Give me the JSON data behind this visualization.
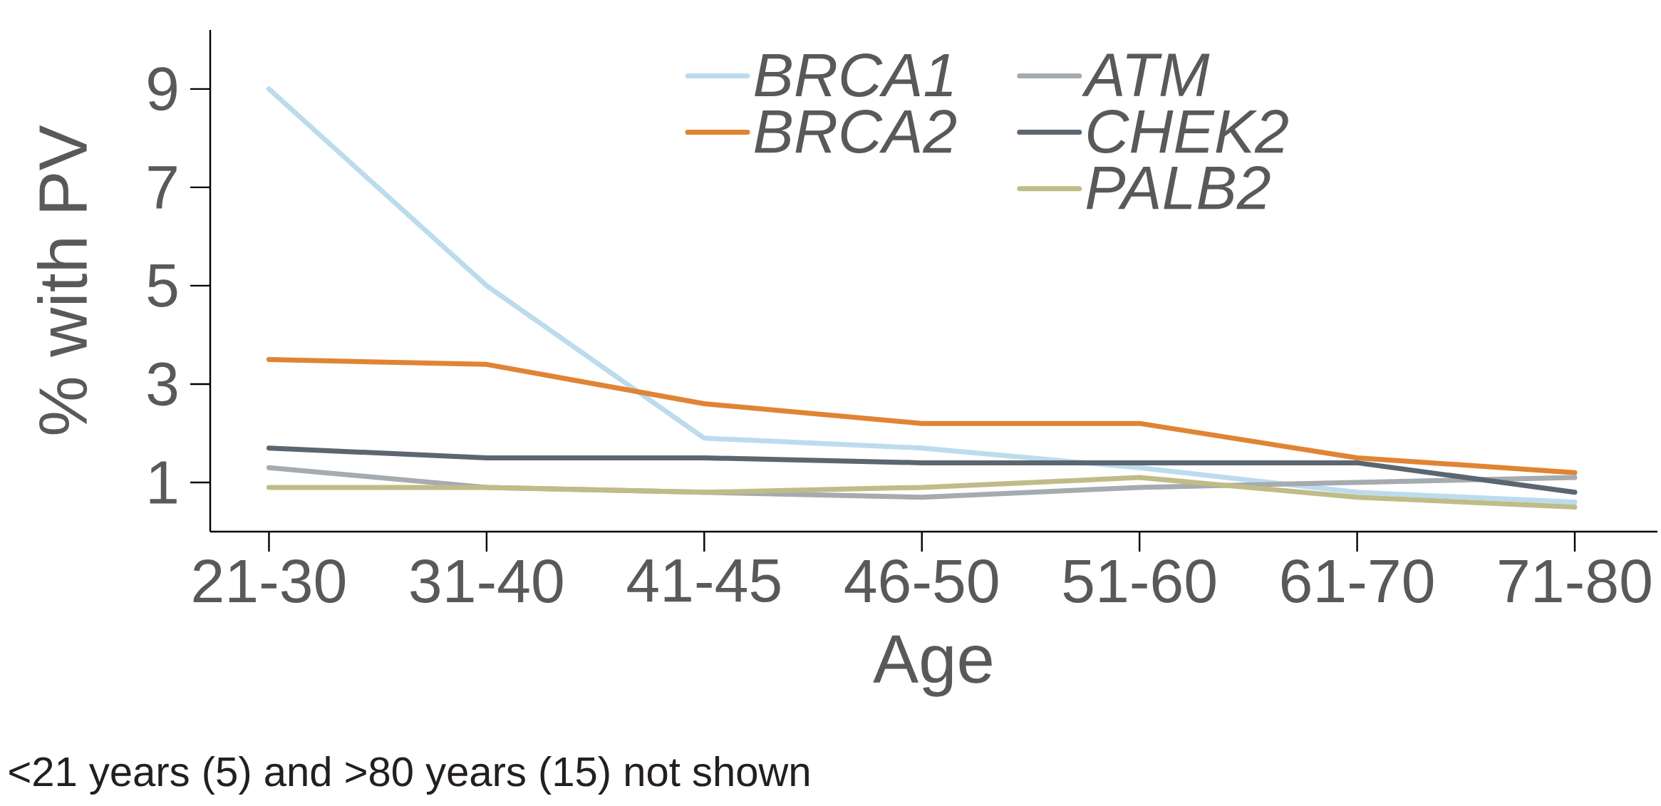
{
  "chart_data": {
    "type": "line",
    "xlabel": "Age",
    "ylabel": "% with PV",
    "categories": [
      "21-30",
      "31-40",
      "41-45",
      "46-50",
      "51-60",
      "61-70",
      "71-80"
    ],
    "series": [
      {
        "name": "BRCA1",
        "color": "#bcdcee",
        "values": [
          9.0,
          5.0,
          1.9,
          1.7,
          1.3,
          0.8,
          0.6
        ]
      },
      {
        "name": "BRCA2",
        "color": "#e08433",
        "values": [
          3.5,
          3.4,
          2.6,
          2.2,
          2.2,
          1.5,
          1.2
        ]
      },
      {
        "name": "ATM",
        "color": "#a5abaf",
        "values": [
          1.3,
          0.9,
          0.8,
          0.7,
          0.9,
          1.0,
          1.1
        ]
      },
      {
        "name": "CHEK2",
        "color": "#5b6670",
        "values": [
          1.7,
          1.5,
          1.5,
          1.4,
          1.4,
          1.4,
          0.8
        ]
      },
      {
        "name": "PALB2",
        "color": "#bfbc88",
        "values": [
          0.9,
          0.9,
          0.8,
          0.9,
          1.1,
          0.7,
          0.5
        ]
      }
    ],
    "ylim": [
      0,
      10.2
    ],
    "yticks": [
      1,
      3,
      5,
      7,
      9
    ],
    "grid": false,
    "legend": "top",
    "marker": "none",
    "line_style": "solid",
    "annotations": [
      "<21 years (5) and >80 years (15) not shown"
    ]
  }
}
